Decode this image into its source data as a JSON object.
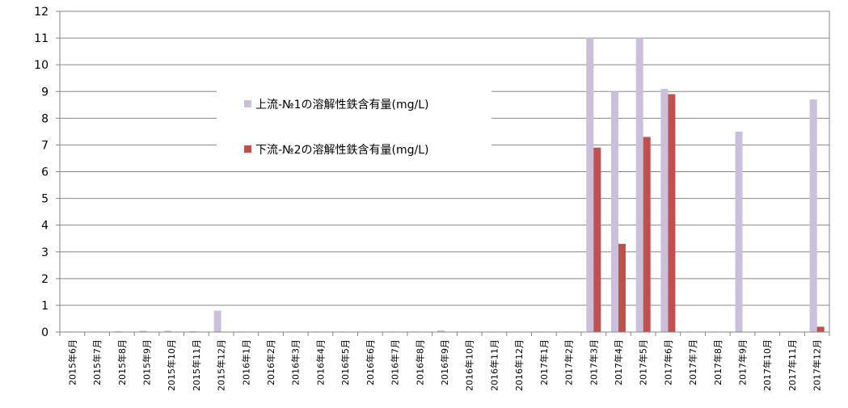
{
  "chart_data": {
    "type": "bar",
    "title": "",
    "xlabel": "",
    "ylabel": "",
    "ylim": [
      0,
      12
    ],
    "yticks": [
      "0",
      "1",
      "2",
      "3",
      "4",
      "5",
      "6",
      "7",
      "8",
      "9",
      "10",
      "11",
      "12"
    ],
    "grid": true,
    "legend_position": "upper-middle",
    "categories": [
      "2015年6月",
      "2015年7月",
      "2015年8月",
      "2015年9月",
      "2015年10月",
      "2015年11月",
      "2015年12月",
      "2016年1月",
      "2016年2月",
      "2016年3月",
      "2016年4月",
      "2016年5月",
      "2016年6月",
      "2016年7月",
      "2016年8月",
      "2016年9月",
      "2016年10月",
      "2016年11月",
      "2016年12月",
      "2017年1月",
      "2017年2月",
      "2017年3月",
      "2017年4月",
      "2017年5月",
      "2017年6月",
      "2017年7月",
      "2017年8月",
      "2017年9月",
      "2017年10月",
      "2017年11月",
      "2017年12月"
    ],
    "series": [
      {
        "name": "上流-№1の溶解性鉄含有量(mg/L)",
        "color": "#cbc0dc",
        "values": [
          0.02,
          0.02,
          0.03,
          0.05,
          0.05,
          0.03,
          0.8,
          0.02,
          0.02,
          0.02,
          0.02,
          0.02,
          0.02,
          0.02,
          0.02,
          0.06,
          0.02,
          0.02,
          0.02,
          0.02,
          0.02,
          11.0,
          9.0,
          11.0,
          9.1,
          0.02,
          0.02,
          7.5,
          0.02,
          0.02,
          8.7
        ]
      },
      {
        "name": "下流-№2の溶解性鉄含有量(mg/L)",
        "color": "#c0504d",
        "values": [
          0,
          0,
          0,
          0,
          0,
          0,
          0,
          0,
          0,
          0,
          0,
          0,
          0,
          0,
          0,
          0,
          0,
          0,
          0,
          0,
          0,
          6.9,
          3.3,
          7.3,
          8.9,
          0,
          0,
          0,
          0,
          0,
          0.2
        ]
      }
    ]
  }
}
